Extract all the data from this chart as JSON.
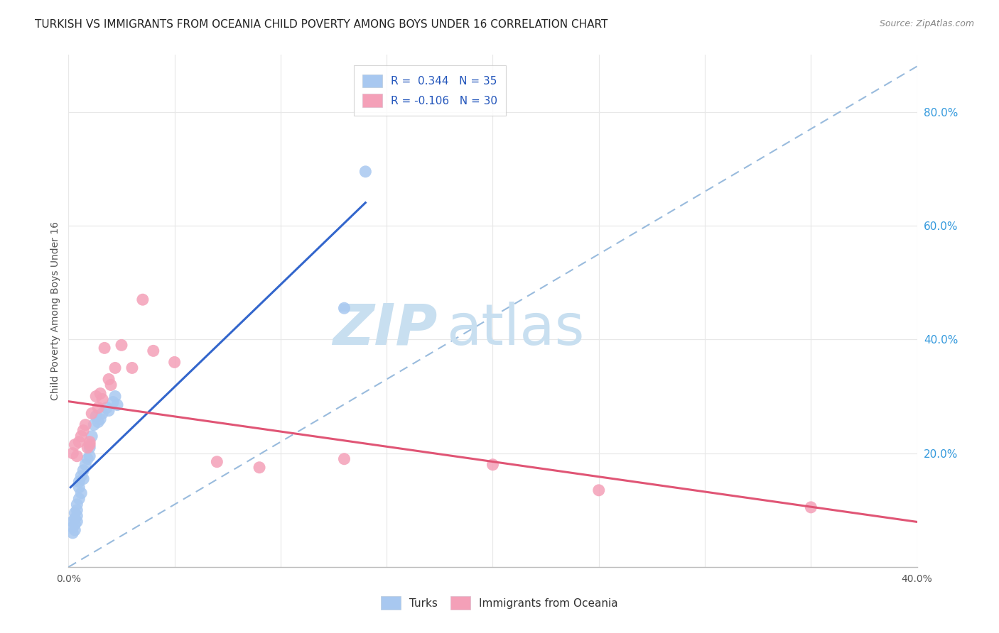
{
  "title": "TURKISH VS IMMIGRANTS FROM OCEANIA CHILD POVERTY AMONG BOYS UNDER 16 CORRELATION CHART",
  "source": "Source: ZipAtlas.com",
  "ylabel": "Child Poverty Among Boys Under 16",
  "legend_label_1": "Turks",
  "legend_label_2": "Immigrants from Oceania",
  "r1": 0.344,
  "n1": 35,
  "r2": -0.106,
  "n2": 30,
  "color1": "#a8c8f0",
  "color2": "#f4a0b8",
  "trend_color1": "#3366cc",
  "trend_color2": "#e05575",
  "diag_color": "#99bbdd",
  "xlim": [
    0.0,
    0.4
  ],
  "ylim": [
    0.0,
    0.9
  ],
  "xtick_positions": [
    0.0,
    0.05,
    0.1,
    0.15,
    0.2,
    0.25,
    0.3,
    0.35,
    0.4
  ],
  "xtick_labels": [
    "0.0%",
    "",
    "",
    "",
    "",
    "",
    "",
    "",
    "40.0%"
  ],
  "yticks_right": [
    0.2,
    0.4,
    0.6,
    0.8
  ],
  "ytick_labels_right": [
    "20.0%",
    "40.0%",
    "60.0%",
    "80.0%"
  ],
  "turks_x": [
    0.002,
    0.002,
    0.002,
    0.003,
    0.003,
    0.003,
    0.003,
    0.004,
    0.004,
    0.004,
    0.004,
    0.005,
    0.005,
    0.005,
    0.006,
    0.006,
    0.007,
    0.007,
    0.008,
    0.009,
    0.01,
    0.01,
    0.011,
    0.012,
    0.013,
    0.014,
    0.015,
    0.016,
    0.018,
    0.019,
    0.021,
    0.022,
    0.023,
    0.13,
    0.14
  ],
  "turks_y": [
    0.08,
    0.07,
    0.06,
    0.095,
    0.085,
    0.075,
    0.065,
    0.1,
    0.09,
    0.08,
    0.11,
    0.15,
    0.14,
    0.12,
    0.16,
    0.13,
    0.17,
    0.155,
    0.18,
    0.19,
    0.21,
    0.195,
    0.23,
    0.25,
    0.265,
    0.255,
    0.26,
    0.27,
    0.28,
    0.275,
    0.29,
    0.3,
    0.285,
    0.455,
    0.695
  ],
  "oceania_x": [
    0.002,
    0.003,
    0.004,
    0.005,
    0.006,
    0.007,
    0.008,
    0.009,
    0.01,
    0.01,
    0.011,
    0.013,
    0.014,
    0.015,
    0.016,
    0.017,
    0.019,
    0.02,
    0.022,
    0.025,
    0.03,
    0.035,
    0.04,
    0.05,
    0.07,
    0.09,
    0.13,
    0.2,
    0.25,
    0.35
  ],
  "oceania_y": [
    0.2,
    0.215,
    0.195,
    0.22,
    0.23,
    0.24,
    0.25,
    0.21,
    0.22,
    0.215,
    0.27,
    0.3,
    0.28,
    0.305,
    0.295,
    0.385,
    0.33,
    0.32,
    0.35,
    0.39,
    0.35,
    0.47,
    0.38,
    0.36,
    0.185,
    0.175,
    0.19,
    0.18,
    0.135,
    0.105
  ],
  "background_color": "#ffffff",
  "grid_color": "#e8e8e8",
  "watermark_zip": "ZIP",
  "watermark_atlas": "atlas",
  "watermark_color_zip": "#c8dff0",
  "watermark_color_atlas": "#c8dff0",
  "title_fontsize": 11,
  "axis_label_fontsize": 10,
  "tick_fontsize": 10,
  "legend_fontsize": 11
}
